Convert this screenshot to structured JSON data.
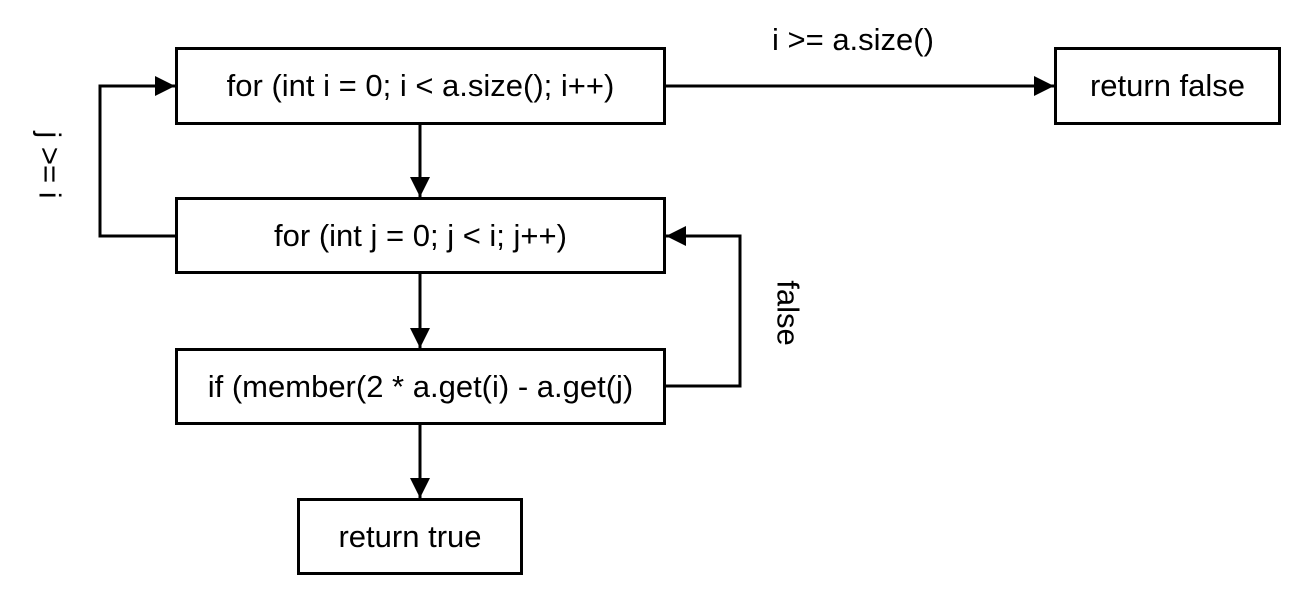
{
  "nodes": {
    "outer_loop": "for (int i = 0; i < a.size(); i++)",
    "inner_loop": "for (int j = 0; j < i; j++)",
    "condition": "if (member(2 * a.get(i) - a.get(j)",
    "return_true": "return true",
    "return_false": "return false"
  },
  "edge_labels": {
    "outer_exit": "i >= a.size()",
    "inner_exit": "j >= i",
    "condition_false": "false"
  },
  "colors": {
    "stroke": "#000000",
    "background": "#ffffff"
  }
}
